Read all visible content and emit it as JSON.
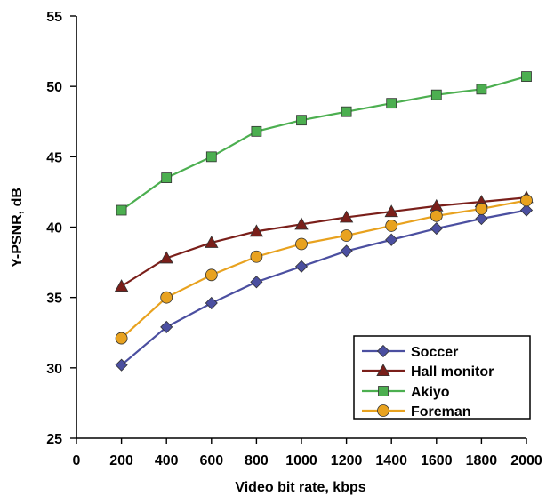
{
  "chart_data": {
    "type": "line",
    "title": "",
    "xlabel": "Video bit rate, kbps",
    "ylabel": "Y-PSNR, dB",
    "x_ticks": [
      0,
      200,
      400,
      600,
      800,
      1000,
      1200,
      1400,
      1600,
      1800,
      2000
    ],
    "y_ticks": [
      25,
      30,
      35,
      40,
      45,
      50,
      55
    ],
    "xlim": [
      0,
      2000
    ],
    "ylim": [
      25,
      55
    ],
    "grid": false,
    "legend_position": "bottom-right",
    "x": [
      200,
      400,
      600,
      800,
      1000,
      1200,
      1400,
      1600,
      1800,
      2000
    ],
    "series": [
      {
        "name": "Soccer",
        "marker": "diamond",
        "color": "#4b4fa0",
        "line_color": "#4b4fa0",
        "values": [
          30.2,
          32.9,
          34.6,
          36.1,
          37.2,
          38.3,
          39.1,
          39.9,
          40.6,
          41.2
        ]
      },
      {
        "name": "Hall monitor",
        "marker": "triangle",
        "color": "#7a1f1a",
        "line_color": "#7a1f1a",
        "values": [
          35.8,
          37.8,
          38.9,
          39.7,
          40.2,
          40.7,
          41.1,
          41.5,
          41.8,
          42.1
        ]
      },
      {
        "name": "Akiyo",
        "marker": "square",
        "color": "#4caf50",
        "line_color": "#4caf50",
        "values": [
          41.2,
          43.5,
          45.0,
          46.8,
          47.6,
          48.2,
          48.8,
          49.4,
          49.8,
          50.7
        ]
      },
      {
        "name": "Foreman",
        "marker": "circle",
        "color": "#e8a21f",
        "line_color": "#e8a21f",
        "values": [
          32.1,
          35.0,
          36.6,
          37.9,
          38.8,
          39.4,
          40.1,
          40.8,
          41.3,
          41.9
        ]
      }
    ]
  }
}
